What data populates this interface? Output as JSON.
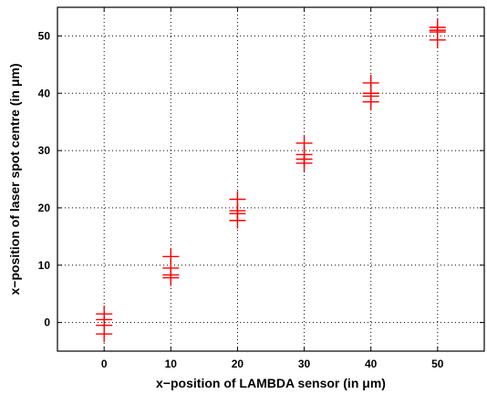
{
  "chart_data": {
    "type": "scatter",
    "title": "",
    "xlabel": "x−position of LAMBDA sensor (in μm)",
    "ylabel": "x−position of laser spot centre (in μm)",
    "xlim": [
      -7,
      57
    ],
    "ylim": [
      -5,
      55
    ],
    "xticks": [
      0,
      10,
      20,
      30,
      40,
      50
    ],
    "yticks": [
      0,
      10,
      20,
      30,
      40,
      50
    ],
    "xtick_labels": [
      "0",
      "10",
      "20",
      "30",
      "40",
      "50"
    ],
    "ytick_labels": [
      "0",
      "10",
      "20",
      "30",
      "40",
      "50"
    ],
    "grid": true,
    "marker": "+",
    "marker_color": "#ff0000",
    "series": [
      {
        "x": [
          0,
          0,
          0,
          0,
          10,
          10,
          10,
          10,
          20,
          20,
          20,
          20,
          30,
          30,
          30,
          30,
          40,
          40,
          40,
          40,
          50,
          50,
          50,
          50
        ],
        "y": [
          1.5,
          0.5,
          -0.5,
          -2.0,
          11.5,
          9.5,
          8.3,
          7.8,
          21.5,
          19.5,
          19.0,
          17.8,
          31.3,
          29.3,
          28.5,
          27.8,
          41.8,
          40.0,
          39.5,
          38.5,
          51.5,
          51.0,
          50.7,
          49.3
        ]
      }
    ]
  }
}
